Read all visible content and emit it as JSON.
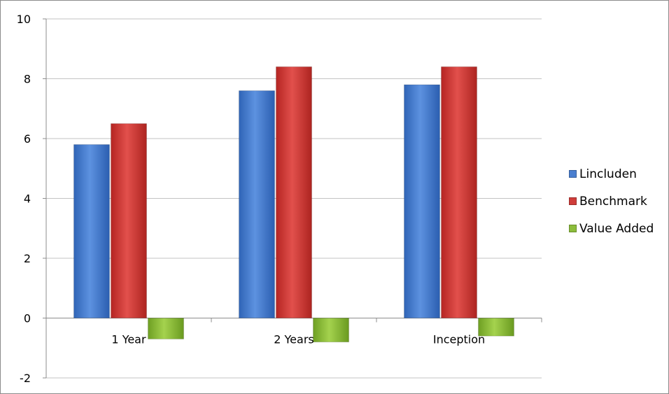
{
  "chart_data": {
    "type": "bar",
    "categories": [
      "1 Year",
      "2 Years",
      "Inception"
    ],
    "series": [
      {
        "name": "Lincluden",
        "values": [
          5.8,
          7.6,
          7.8
        ],
        "color": "#4a7fd0"
      },
      {
        "name": "Benchmark",
        "values": [
          6.5,
          8.4,
          8.4
        ],
        "color": "#cf3d3a"
      },
      {
        "name": "Value Added",
        "values": [
          -0.7,
          -0.8,
          -0.6
        ],
        "color": "#8cbd3b"
      }
    ],
    "ylim": [
      -2,
      10
    ],
    "yticks": [
      -2,
      0,
      2,
      4,
      6,
      8,
      10
    ],
    "grid": true,
    "legend_position": "right"
  }
}
